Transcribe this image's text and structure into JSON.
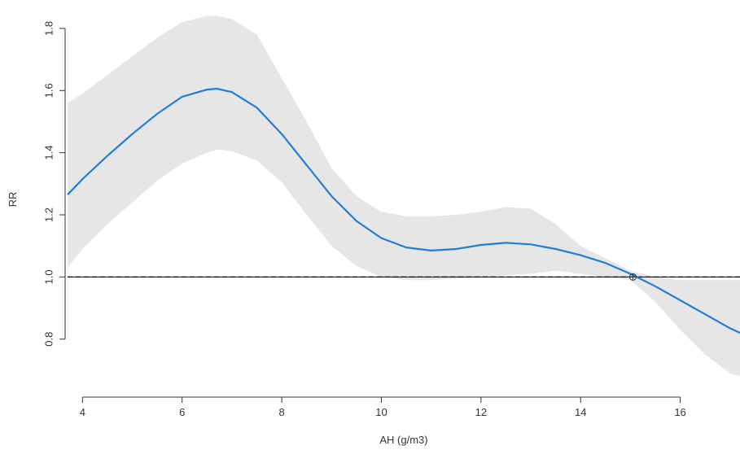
{
  "chart_data": {
    "type": "line",
    "title": "",
    "xlabel": "AH (g/m3)",
    "ylabel": "RR",
    "xlim": [
      3.7,
      17.2
    ],
    "ylim": [
      0.65,
      1.86
    ],
    "x_ticks": [
      4,
      6,
      8,
      10,
      12,
      14,
      16
    ],
    "x_tick_labels": [
      "4",
      "6",
      "8",
      "10",
      "12",
      "14",
      "16"
    ],
    "y_ticks": [
      0.8,
      1.0,
      1.2,
      1.4,
      1.6,
      1.8
    ],
    "y_tick_labels": [
      "0.8",
      "1.0",
      "1.2",
      "1.4",
      "1.6",
      "1.8"
    ],
    "grid": false,
    "reference_line": {
      "y": 1.0,
      "style": "dashed"
    },
    "reference_point": {
      "x": 15.05,
      "y": 1.0
    },
    "colors": {
      "line": "#1f7fd6",
      "band": "#e6e6e6",
      "axis": "#333333"
    },
    "series": [
      {
        "x": [
          3.7,
          4.0,
          4.5,
          5.0,
          5.5,
          6.0,
          6.5,
          6.7,
          7.0,
          7.5,
          8.0,
          8.5,
          9.0,
          9.5,
          10.0,
          10.5,
          11.0,
          11.5,
          12.0,
          12.5,
          13.0,
          13.5,
          14.0,
          14.5,
          15.0,
          15.5,
          16.0,
          16.5,
          17.0,
          17.2
        ],
        "y": [
          1.265,
          1.315,
          1.39,
          1.46,
          1.525,
          1.58,
          1.603,
          1.606,
          1.595,
          1.545,
          1.46,
          1.36,
          1.26,
          1.18,
          1.125,
          1.095,
          1.085,
          1.09,
          1.103,
          1.11,
          1.105,
          1.09,
          1.07,
          1.045,
          1.01,
          0.97,
          0.925,
          0.88,
          0.835,
          0.82
        ],
        "lower": [
          1.03,
          1.09,
          1.17,
          1.24,
          1.31,
          1.365,
          1.4,
          1.41,
          1.405,
          1.375,
          1.305,
          1.2,
          1.1,
          1.035,
          1.0,
          0.99,
          0.99,
          0.995,
          1.0,
          1.005,
          1.01,
          1.02,
          1.01,
          1.0,
          0.99,
          0.92,
          0.83,
          0.75,
          0.69,
          0.68
        ],
        "upper": [
          1.56,
          1.59,
          1.65,
          1.71,
          1.77,
          1.82,
          1.84,
          1.84,
          1.83,
          1.78,
          1.64,
          1.5,
          1.35,
          1.26,
          1.21,
          1.195,
          1.195,
          1.2,
          1.21,
          1.225,
          1.22,
          1.17,
          1.1,
          1.06,
          1.02,
          1.0,
          0.99,
          0.99,
          0.99,
          0.99
        ]
      }
    ]
  }
}
